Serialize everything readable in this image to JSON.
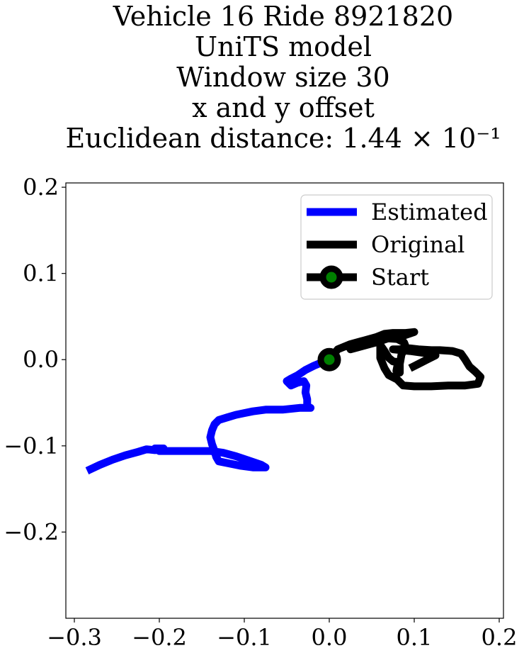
{
  "chart_data": {
    "type": "line",
    "title_lines": [
      "Vehicle 16 Ride 8921820",
      "UniTS model",
      "Window size 30",
      "x and y offset",
      "Euclidean distance: 1.44 × 10⁻¹"
    ],
    "xlabel": "",
    "ylabel": "",
    "xlim": [
      -0.31,
      0.205
    ],
    "ylim": [
      -0.3,
      0.205
    ],
    "x_ticks": [
      -0.3,
      -0.2,
      -0.1,
      0.0,
      0.1,
      0.2
    ],
    "x_tick_labels": [
      "−0.3",
      "−0.2",
      "−0.1",
      "0.0",
      "0.1",
      "0.2"
    ],
    "y_ticks": [
      -0.2,
      -0.1,
      0.0,
      0.1,
      0.2
    ],
    "y_tick_labels": [
      "−0.2",
      "−0.1",
      "0.0",
      "0.1",
      "0.2"
    ],
    "grid": false,
    "legend_position": "top-right",
    "series": [
      {
        "name": "Estimated",
        "color": "#0000ff",
        "points": [
          [
            0.0,
            0.0
          ],
          [
            -0.008,
            -0.003
          ],
          [
            -0.018,
            -0.007
          ],
          [
            -0.028,
            -0.012
          ],
          [
            -0.037,
            -0.018
          ],
          [
            -0.045,
            -0.022
          ],
          [
            -0.05,
            -0.025
          ],
          [
            -0.045,
            -0.03
          ],
          [
            -0.038,
            -0.027
          ],
          [
            -0.03,
            -0.025
          ],
          [
            -0.027,
            -0.03
          ],
          [
            -0.028,
            -0.038
          ],
          [
            -0.026,
            -0.046
          ],
          [
            -0.026,
            -0.054
          ],
          [
            -0.022,
            -0.056
          ],
          [
            -0.035,
            -0.056
          ],
          [
            -0.055,
            -0.058
          ],
          [
            -0.075,
            -0.058
          ],
          [
            -0.09,
            -0.06
          ],
          [
            -0.1,
            -0.062
          ],
          [
            -0.11,
            -0.064
          ],
          [
            -0.12,
            -0.067
          ],
          [
            -0.13,
            -0.07
          ],
          [
            -0.135,
            -0.075
          ],
          [
            -0.138,
            -0.082
          ],
          [
            -0.14,
            -0.09
          ],
          [
            -0.138,
            -0.098
          ],
          [
            -0.135,
            -0.106
          ],
          [
            -0.133,
            -0.113
          ],
          [
            -0.13,
            -0.118
          ],
          [
            -0.12,
            -0.12
          ],
          [
            -0.105,
            -0.123
          ],
          [
            -0.09,
            -0.125
          ],
          [
            -0.075,
            -0.125
          ],
          [
            -0.08,
            -0.122
          ],
          [
            -0.095,
            -0.117
          ],
          [
            -0.11,
            -0.112
          ],
          [
            -0.125,
            -0.108
          ],
          [
            -0.14,
            -0.106
          ],
          [
            -0.16,
            -0.106
          ],
          [
            -0.18,
            -0.106
          ],
          [
            -0.2,
            -0.106
          ],
          [
            -0.205,
            -0.103
          ],
          [
            -0.195,
            -0.103
          ],
          [
            -0.205,
            -0.105
          ],
          [
            -0.215,
            -0.104
          ],
          [
            -0.225,
            -0.107
          ],
          [
            -0.24,
            -0.111
          ],
          [
            -0.255,
            -0.116
          ],
          [
            -0.27,
            -0.122
          ],
          [
            -0.285,
            -0.129
          ]
        ]
      },
      {
        "name": "Original",
        "color": "#000000",
        "points": [
          [
            0.0,
            0.0
          ],
          [
            0.01,
            0.012
          ],
          [
            0.025,
            0.018
          ],
          [
            0.04,
            0.022
          ],
          [
            0.055,
            0.026
          ],
          [
            0.065,
            0.03
          ],
          [
            0.075,
            0.031
          ],
          [
            0.09,
            0.031
          ],
          [
            0.1,
            0.032
          ],
          [
            0.085,
            0.027
          ],
          [
            0.07,
            0.025
          ],
          [
            0.055,
            0.02
          ],
          [
            0.04,
            0.016
          ],
          [
            0.025,
            0.012
          ],
          [
            0.035,
            0.017
          ],
          [
            0.05,
            0.022
          ],
          [
            0.065,
            0.025
          ],
          [
            0.08,
            0.024
          ],
          [
            0.088,
            0.02
          ],
          [
            0.09,
            0.015
          ],
          [
            0.085,
            0.006
          ],
          [
            0.083,
            -0.005
          ],
          [
            0.083,
            -0.015
          ],
          [
            0.079,
            -0.013
          ],
          [
            0.081,
            -0.003
          ],
          [
            0.075,
            -0.002
          ],
          [
            0.07,
            0.002
          ],
          [
            0.065,
            0.01
          ],
          [
            0.06,
            0.017
          ],
          [
            0.06,
            0.002
          ],
          [
            0.065,
            -0.01
          ],
          [
            0.07,
            -0.018
          ],
          [
            0.08,
            -0.023
          ],
          [
            0.087,
            -0.03
          ],
          [
            0.1,
            -0.031
          ],
          [
            0.12,
            -0.031
          ],
          [
            0.14,
            -0.03
          ],
          [
            0.16,
            -0.03
          ],
          [
            0.175,
            -0.028
          ],
          [
            0.178,
            -0.02
          ],
          [
            0.172,
            -0.014
          ],
          [
            0.165,
            -0.008
          ],
          [
            0.16,
            0.0
          ],
          [
            0.155,
            0.007
          ],
          [
            0.145,
            0.01
          ],
          [
            0.13,
            0.011
          ],
          [
            0.12,
            0.011
          ],
          [
            0.105,
            0.012
          ],
          [
            0.095,
            0.013
          ],
          [
            0.082,
            0.012
          ],
          [
            0.075,
            0.012
          ],
          [
            0.095,
            0.01
          ],
          [
            0.11,
            0.008
          ],
          [
            0.125,
            0.005
          ],
          [
            0.115,
            0.0
          ],
          [
            0.105,
            -0.005
          ],
          [
            0.095,
            -0.01
          ]
        ]
      }
    ],
    "start_marker": {
      "name": "Start",
      "x": 0.0,
      "y": 0.0,
      "face_color": "#008000",
      "edge_color": "#000000"
    }
  }
}
